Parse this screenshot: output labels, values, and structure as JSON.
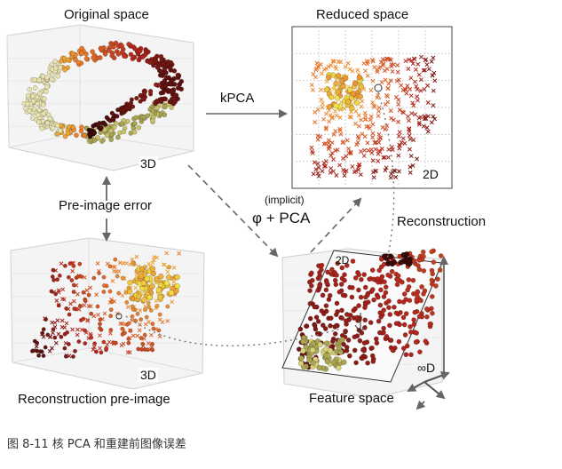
{
  "labels": {
    "original_space": "Original space",
    "reduced_space": "Reduced space",
    "kpca": "kPCA",
    "pre_image_error": "Pre-image error",
    "implicit": "(implicit)",
    "phi_pca": "φ + PCA",
    "reconstruction": "Reconstruction",
    "reconstruction_pre_image": "Reconstruction pre-image",
    "feature_space": "Feature space"
  },
  "dimensions": {
    "original": "3D",
    "reduced": "2D",
    "recon": "3D",
    "feature_plane": "2D",
    "feature_inf": "∞D"
  },
  "caption": "图 8-11 核 PCA 和重建前图像误差",
  "colors": {
    "dark": "#3a0a0a",
    "red": "#b3261e",
    "orange": "#e8742a",
    "yellow": "#f2e84a",
    "olive": "#a9a552",
    "arrow": "#666666",
    "dotted": "#777777"
  }
}
